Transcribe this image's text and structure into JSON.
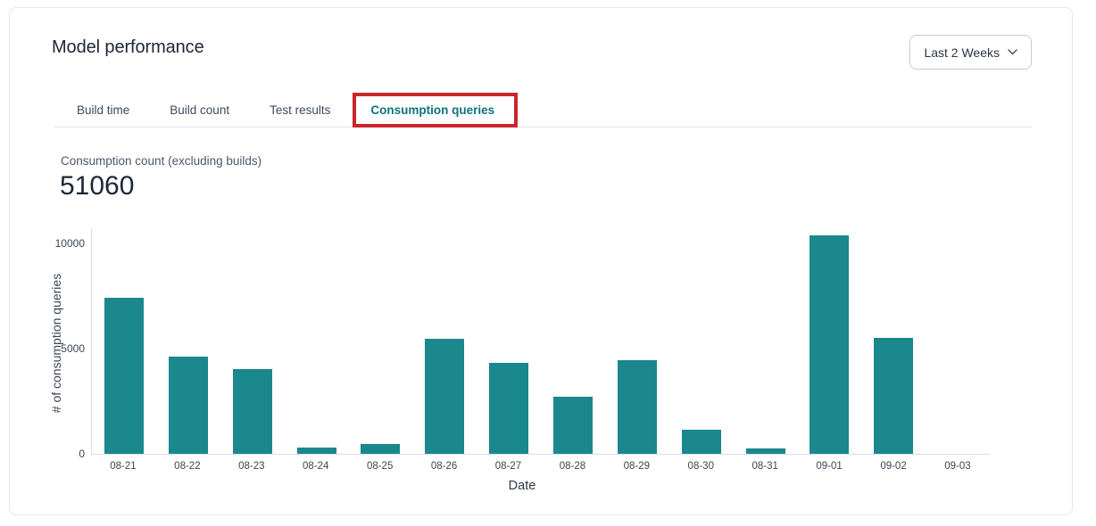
{
  "page": {
    "title": "Model performance"
  },
  "time_range_selector": {
    "label": "Last 2 Weeks"
  },
  "tabs": [
    {
      "label": "Build time",
      "active": false
    },
    {
      "label": "Build count",
      "active": false
    },
    {
      "label": "Test results",
      "active": false
    },
    {
      "label": "Consumption queries",
      "active": true
    }
  ],
  "metric": {
    "label": "Consumption count (excluding builds)",
    "value": "51060"
  },
  "chart_data": {
    "type": "bar",
    "title": "Consumption count (excluding builds)",
    "categories": [
      "08-21",
      "08-22",
      "08-23",
      "08-24",
      "08-25",
      "08-26",
      "08-27",
      "08-28",
      "08-29",
      "08-30",
      "08-31",
      "09-01",
      "09-02",
      "09-03"
    ],
    "values": [
      7400,
      4600,
      4020,
      300,
      450,
      5480,
      4340,
      2730,
      4450,
      1150,
      240,
      10400,
      5500,
      0
    ],
    "xlabel": "Date",
    "ylabel": "# of consumption queries",
    "yticks": [
      0,
      5000,
      10000
    ],
    "ylim": [
      0,
      10760
    ],
    "grid": false,
    "legend": false,
    "bar_color": "#1a888c"
  },
  "colors": {
    "accent_teal": "#0d747c",
    "bar_teal": "#1a888c",
    "annotation_red": "#c9252b",
    "card_border": "#e3e6ec",
    "title_text": "#1d2635",
    "tab_text": "#3d4a5c"
  }
}
